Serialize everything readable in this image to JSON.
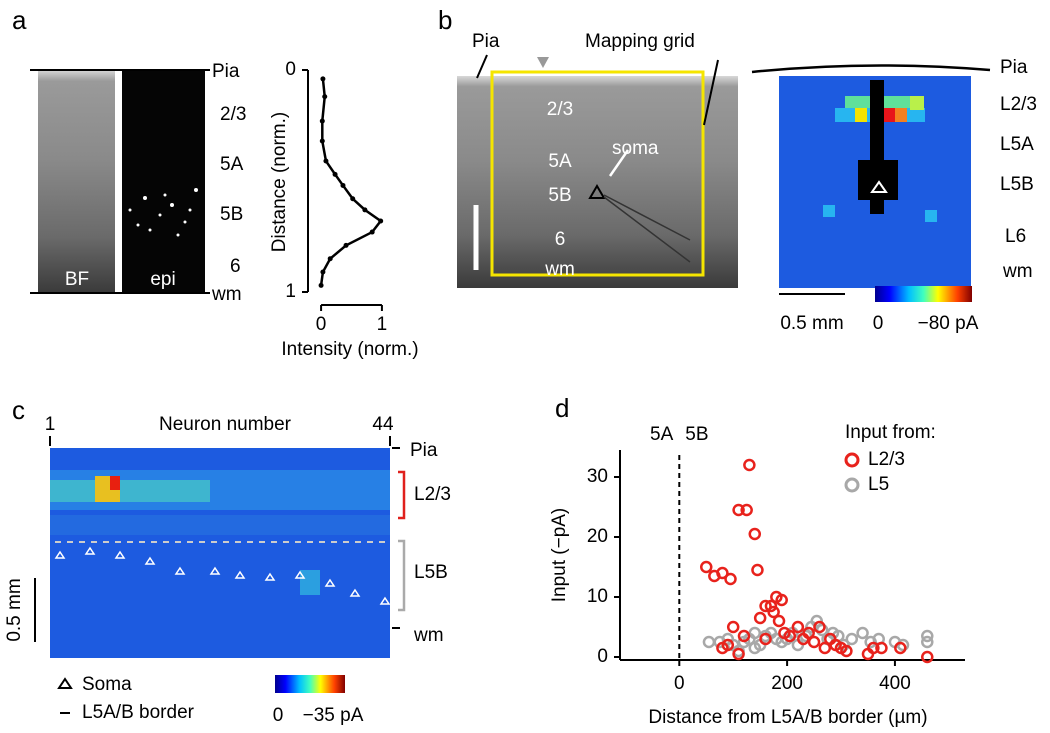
{
  "panel_labels": [
    "a",
    "b",
    "c",
    "d"
  ],
  "panel_a": {
    "layers": [
      "Pia",
      "2/3",
      "5A",
      "5B",
      "6",
      "wm"
    ],
    "image_labels": [
      "BF",
      "epi"
    ]
  },
  "panel_b": {
    "pia": "Pia",
    "mapping_grid": "Mapping grid",
    "layers": [
      "2/3",
      "5A",
      "5B",
      "6",
      "wm"
    ],
    "soma": "soma",
    "map_layers": [
      "Pia",
      "L2/3",
      "L5A",
      "L5B",
      "L6",
      "wm"
    ],
    "scale_bar": "0.5 mm",
    "colorbar": [
      "0",
      "−80 pA"
    ]
  },
  "panel_c": {
    "neuron_first": "1",
    "neuron_axis": "Neuron number",
    "neuron_last": "44",
    "layers": [
      "Pia",
      "L2/3",
      "L5B",
      "wm"
    ],
    "scale_bar": "0.5 mm",
    "legend": [
      "Soma",
      "L5A/B border"
    ],
    "colorbar": [
      "0",
      "−35 pA"
    ]
  },
  "chart_data": [
    {
      "type": "profile",
      "ylabel": "Distance (norm.)",
      "xlabel": "Intensity (norm.)",
      "ylim": [
        0,
        1
      ],
      "yticks": [
        0,
        1
      ],
      "y_reversed": true,
      "xlim": [
        -0.1,
        1.1
      ],
      "xticks": [
        0,
        1
      ],
      "series": [
        {
          "color": "#000000",
          "distance": [
            0.04,
            0.12,
            0.23,
            0.32,
            0.41,
            0.47,
            0.52,
            0.58,
            0.63,
            0.68,
            0.73,
            0.79,
            0.85,
            0.91,
            0.97
          ],
          "values": [
            0.03,
            0.06,
            0.02,
            0.02,
            0.08,
            0.23,
            0.36,
            0.52,
            0.72,
            0.98,
            0.84,
            0.41,
            0.15,
            0.03,
            0
          ]
        }
      ]
    },
    {
      "type": "scatter",
      "ylabel": "Input (−pA)",
      "xlabel": "Distance from L5A/B border (µm)",
      "xlim": [
        -110,
        530
      ],
      "ylim": [
        -0.5,
        34.5
      ],
      "xticks": [
        0,
        200,
        400
      ],
      "yticks": [
        0,
        10,
        20,
        30
      ],
      "border_x": 0,
      "border_labels": [
        "5A",
        "5B"
      ],
      "legend_title": "Input from:",
      "series": [
        {
          "name": "L2/3",
          "color": "#e8221c",
          "x": [
            50,
            65,
            80,
            95,
            110,
            125,
            130,
            140,
            145,
            100,
            90,
            80,
            110,
            150,
            160,
            170,
            175,
            180,
            190,
            185,
            195,
            160,
            120,
            205,
            220,
            230,
            240,
            250,
            260,
            270,
            280,
            290,
            300,
            310,
            350,
            360,
            375,
            410,
            460
          ],
          "values": [
            15,
            13.5,
            14,
            13,
            24.5,
            24.5,
            32,
            20.5,
            14.5,
            5,
            2,
            1.5,
            0.5,
            6.5,
            8.5,
            8.5,
            7.5,
            10,
            9.5,
            6,
            4,
            3,
            3.5,
            3.5,
            5,
            3,
            4,
            2.5,
            5,
            1.5,
            3,
            2,
            1.5,
            1,
            0.5,
            1.5,
            1.5,
            1.5,
            0
          ]
        },
        {
          "name": "L5",
          "color": "#a8a8a8",
          "x": [
            55,
            75,
            90,
            100,
            120,
            130,
            140,
            150,
            160,
            170,
            180,
            190,
            200,
            210,
            220,
            235,
            245,
            255,
            265,
            275,
            285,
            295,
            305,
            320,
            340,
            355,
            370,
            400,
            415,
            460,
            460,
            110,
            140
          ],
          "values": [
            2.5,
            2.5,
            3,
            2,
            2.5,
            3,
            4,
            2,
            3.5,
            4,
            3,
            2.5,
            3,
            4,
            2,
            3.5,
            5,
            6,
            4.5,
            3,
            4,
            3.5,
            2,
            3,
            4,
            2.5,
            3,
            2.5,
            2,
            3.5,
            2.5,
            1,
            1.5
          ]
        }
      ]
    }
  ]
}
